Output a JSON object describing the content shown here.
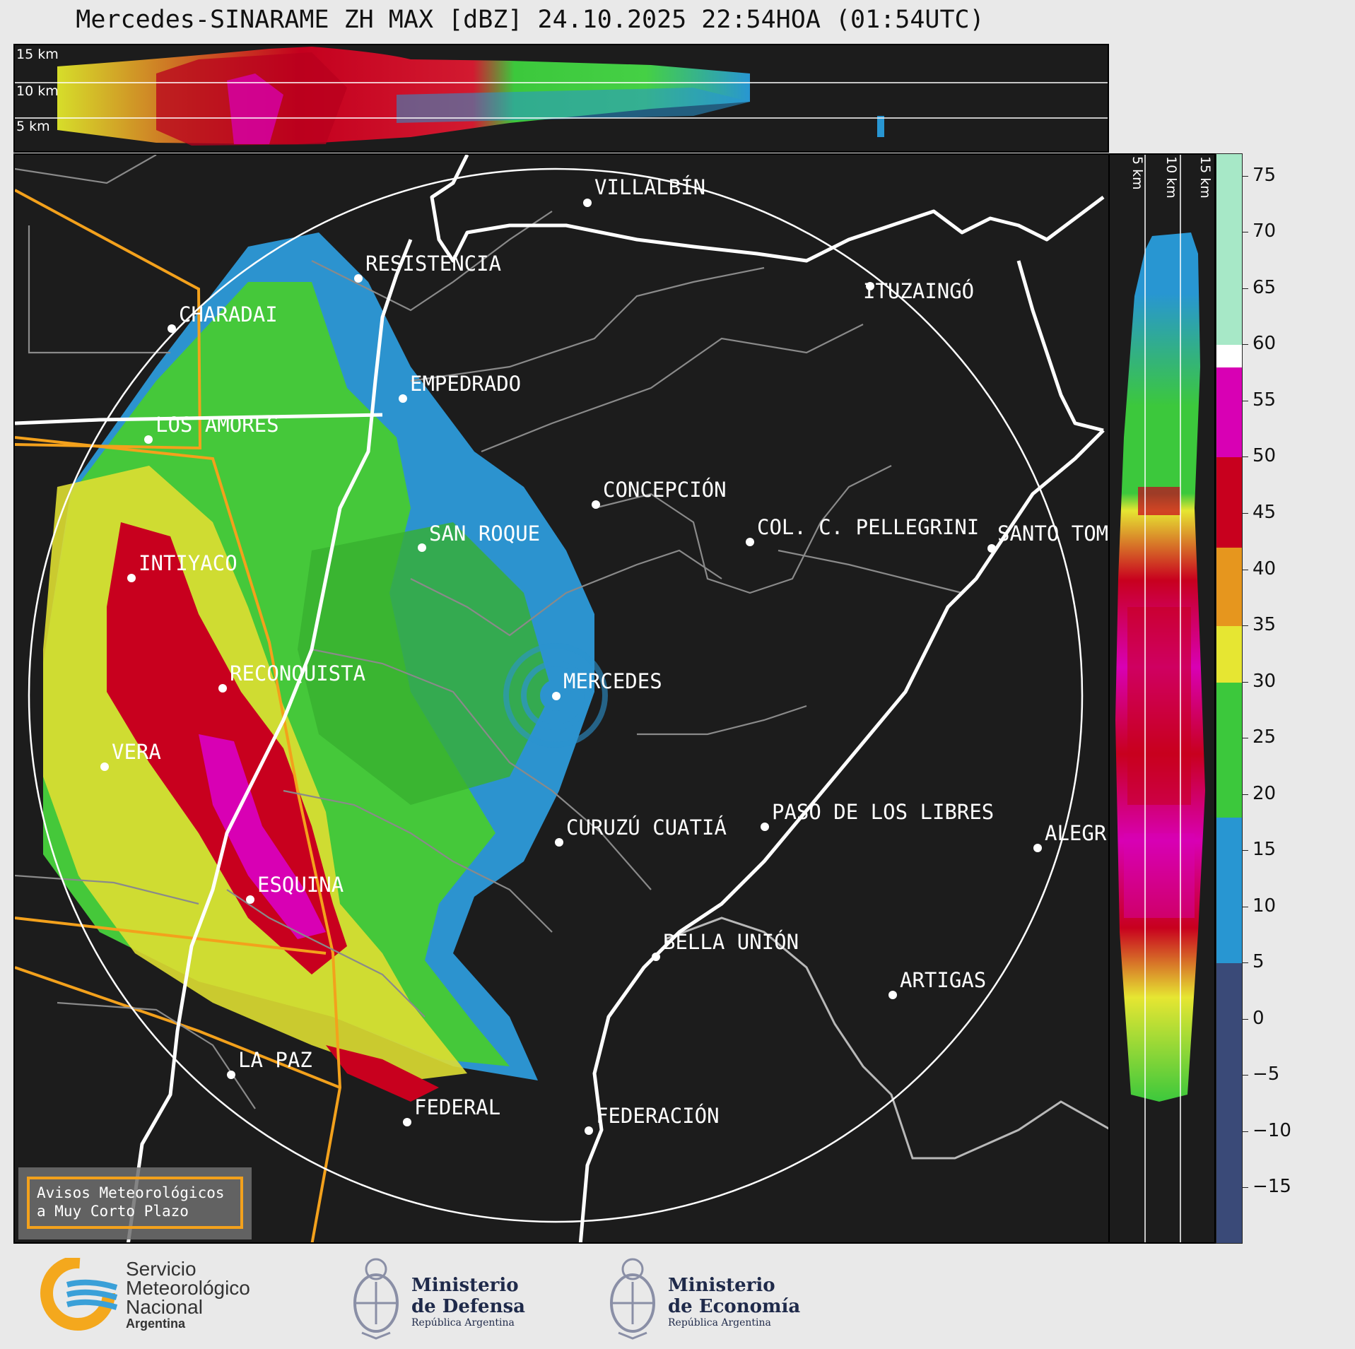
{
  "title": "Mercedes-SINARAME ZH MAX [dBZ] 24.10.2025 22:54HOA (01:54UTC)",
  "top_panel": {
    "height_labels": [
      "15 km",
      "10 km",
      "5 km"
    ]
  },
  "side_panel": {
    "height_labels": [
      "5 km",
      "10 km",
      "15 km"
    ]
  },
  "colorbar": {
    "unit": "dBZ",
    "ticks": [
      "75",
      "70",
      "65",
      "60",
      "55",
      "50",
      "45",
      "40",
      "35",
      "30",
      "25",
      "20",
      "15",
      "10",
      "5",
      "0",
      "−5",
      "−10",
      "−15"
    ],
    "range": [
      -20,
      77
    ],
    "bands": [
      {
        "from": 60,
        "to": 77,
        "color": "#a7e8c7"
      },
      {
        "from": 58,
        "to": 60,
        "color": "#ffffff"
      },
      {
        "from": 50,
        "to": 58,
        "color": "#d800b4"
      },
      {
        "from": 42,
        "to": 50,
        "color": "#c8001e"
      },
      {
        "from": 35,
        "to": 42,
        "color": "#e6961e"
      },
      {
        "from": 30,
        "to": 35,
        "color": "#e6e632"
      },
      {
        "from": 18,
        "to": 30,
        "color": "#3cc83c"
      },
      {
        "from": 5,
        "to": 18,
        "color": "#2896d2"
      },
      {
        "from": -20,
        "to": 5,
        "color": "#3a4a78"
      }
    ]
  },
  "cities": [
    {
      "name": "VILLALBÍN"
    },
    {
      "name": "RESISTENCIA"
    },
    {
      "name": "ITUZAINGÓ"
    },
    {
      "name": "CHARADAI"
    },
    {
      "name": "EMPEDRADO"
    },
    {
      "name": "LOS AMORES"
    },
    {
      "name": "CONCEPCIÓN"
    },
    {
      "name": "SAN ROQUE"
    },
    {
      "name": "COL. C. PELLEGRINI"
    },
    {
      "name": "SANTO TOM"
    },
    {
      "name": "INTIYACO"
    },
    {
      "name": "RECONQUISTA"
    },
    {
      "name": "MERCEDES"
    },
    {
      "name": "VERA"
    },
    {
      "name": "PASO DE LOS LIBRES"
    },
    {
      "name": "CURUZÚ CUATIÁ"
    },
    {
      "name": "ALEGR"
    },
    {
      "name": "ESQUINA"
    },
    {
      "name": "BELLA UNIÓN"
    },
    {
      "name": "ARTIGAS"
    },
    {
      "name": "LA PAZ"
    },
    {
      "name": "FEDERAL"
    },
    {
      "name": "FEDERACIÓN"
    }
  ],
  "warning_box": {
    "line1": "Avisos Meteorológicos",
    "line2": "a Muy Corto Plazo"
  },
  "logos": {
    "smn": {
      "line1": "Servicio",
      "line2": "Meteorológico",
      "line3": "Nacional",
      "line4": "Argentina",
      "icon": "smn-logo-icon"
    },
    "defensa": {
      "line1": "Ministerio",
      "line2": "de Defensa",
      "line3": "República Argentina",
      "icon": "coat-of-arms-icon"
    },
    "economia": {
      "line1": "Ministerio",
      "line2": "de Economía",
      "line3": "República Argentina",
      "icon": "coat-of-arms-icon"
    }
  }
}
